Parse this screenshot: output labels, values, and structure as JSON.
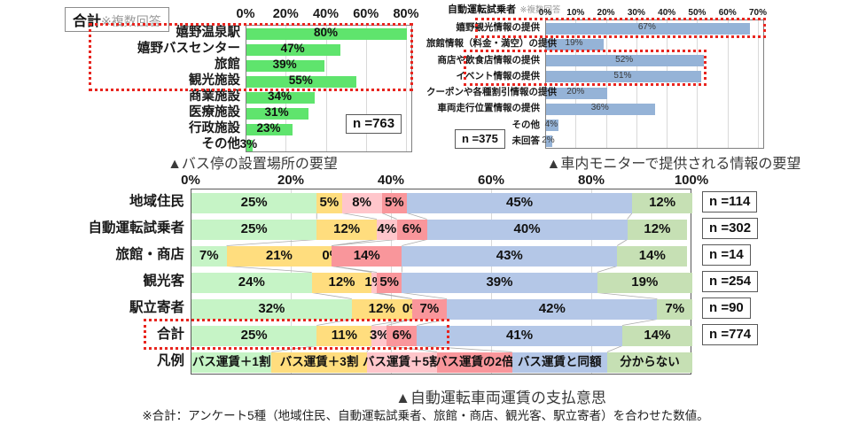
{
  "colors": {
    "highlight_box": "#e8251f",
    "gridline": "#d9d9d9",
    "plot_border": "#808080",
    "bus_bar_green": "#5fe46d",
    "monitor_bar_blue": "#95b3d7"
  },
  "footnote": "※合計：アンケート5種（地域住民、自動運転試乗者、旅館・商店、観光客、駅立寄者）を合わせた数値。",
  "chart_data": [
    {
      "id": "bus-stop-location",
      "type": "bar",
      "orientation": "horizontal",
      "title": "▲バス停の設置場所の要望",
      "header": "合計",
      "header_note": "※複数回答",
      "n": "n =763",
      "xlim": [
        0,
        83
      ],
      "ticks": [
        0,
        20,
        40,
        60,
        80
      ],
      "tick_suffix": "%",
      "grid": true,
      "categories": [
        "嬉野温泉駅",
        "嬉野バスセンター",
        "旅館",
        "観光施設",
        "商業施設",
        "医療施設",
        "行政施設",
        "その他"
      ],
      "values": [
        80,
        47,
        39,
        55,
        34,
        31,
        23,
        3
      ],
      "bar_color": "#5fe46d",
      "highlighted_categories": [
        "嬉野温泉駅",
        "嬉野バスセンター",
        "旅館",
        "観光施設"
      ]
    },
    {
      "id": "monitor-information",
      "type": "bar",
      "orientation": "horizontal",
      "title": "▲車内モニターで提供される情報の要望",
      "header": "自動運転試乗者",
      "header_note": "※複数回答",
      "n": "n =375",
      "xlim": [
        0,
        72
      ],
      "ticks": [
        0,
        10,
        20,
        30,
        40,
        50,
        60,
        70
      ],
      "tick_suffix": "%",
      "grid": true,
      "categories": [
        "嬉野観光情報の提供",
        "旅館情報（料金・満空）の提供",
        "商店や飲食店情報の提供",
        "イベント情報の提供",
        "クーポンや各種割引情報の提供",
        "車両走行位置情報の提供",
        "その他",
        "未回答"
      ],
      "values": [
        67,
        19,
        52,
        51,
        20,
        36,
        4,
        2
      ],
      "bar_color": "#95b3d7",
      "highlighted_categories": [
        "嬉野観光情報の提供",
        "商店や飲食店情報の提供",
        "イベント情報の提供"
      ]
    },
    {
      "id": "fare-willingness",
      "type": "bar",
      "stacked": true,
      "orientation": "horizontal",
      "title": "▲自動運転車両運賃の支払意思",
      "xlim": [
        0,
        100
      ],
      "ticks": [
        0,
        20,
        40,
        60,
        80,
        100
      ],
      "tick_suffix": "%",
      "grid": true,
      "categories": [
        "地域住民",
        "自動運転試乗者",
        "旅館・商店",
        "観光客",
        "駅立寄者",
        "合計"
      ],
      "legend_row_label": "凡例",
      "series": [
        {
          "name": "バス運賃＋1割",
          "color": "#c6f4c6",
          "values": [
            25,
            25,
            7,
            24,
            32,
            25
          ]
        },
        {
          "name": "バス運賃＋3割",
          "color": "#ffdd7e",
          "values": [
            5,
            12,
            21,
            12,
            12,
            11
          ]
        },
        {
          "name": "バス運賃＋5割",
          "color": "#ffc6cb",
          "values": [
            8,
            4,
            0,
            1,
            0,
            3
          ]
        },
        {
          "name": "バス運賃の2倍",
          "color": "#f9969b",
          "values": [
            5,
            6,
            14,
            5,
            7,
            6
          ]
        },
        {
          "name": "バス運賃と同額",
          "color": "#b4c7e7",
          "values": [
            45,
            40,
            43,
            39,
            42,
            41
          ]
        },
        {
          "name": "分からない",
          "color": "#c6e0b4",
          "values": [
            12,
            12,
            14,
            19,
            7,
            14
          ]
        }
      ],
      "n_labels": [
        "n =114",
        "n =302",
        "n =14",
        "n =254",
        "n =90",
        "n =774"
      ],
      "highlighted_categories": [
        "合計"
      ]
    }
  ]
}
